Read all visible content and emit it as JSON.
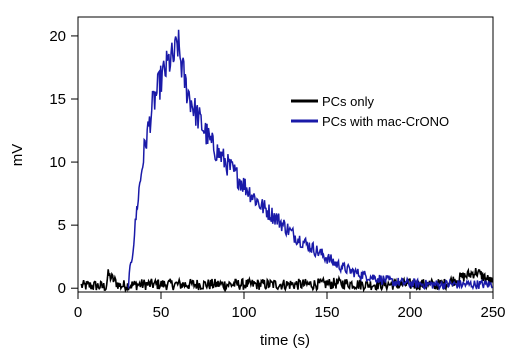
{
  "chart_data": {
    "type": "line",
    "xlabel": "time (s)",
    "ylabel": "mV",
    "xlim": [
      0,
      250
    ],
    "ylim": [
      -0.3,
      21.5
    ],
    "xticks": [
      0,
      50,
      100,
      150,
      200,
      250
    ],
    "yticks": [
      0,
      5,
      10,
      15,
      20
    ],
    "grid": false,
    "legend_position": "upper-right",
    "series": [
      {
        "name": "PCs only",
        "color": "#000000",
        "x": [
          2,
          10,
          17,
          18,
          25,
          40,
          60,
          80,
          100,
          120,
          140,
          160,
          170,
          180,
          200,
          220,
          240,
          250
        ],
        "y": [
          0.2,
          0.2,
          0.1,
          1.1,
          0.2,
          0.3,
          0.3,
          0.3,
          0.3,
          0.3,
          0.3,
          0.4,
          0.3,
          0.3,
          0.3,
          0.3,
          1.3,
          0.4
        ]
      },
      {
        "name": "PCs with mac-CrONO",
        "color": "#1a1aa8",
        "x": [
          30,
          33,
          36,
          40,
          45,
          50,
          55,
          58,
          60,
          62,
          65,
          70,
          80,
          90,
          100,
          110,
          120,
          130,
          140,
          150,
          160,
          170,
          180,
          190,
          200,
          210,
          220,
          230,
          240,
          250
        ],
        "y": [
          0,
          3,
          7,
          11,
          14.5,
          16.5,
          18,
          18.3,
          19.5,
          18,
          16,
          14.2,
          11.5,
          9.8,
          8.2,
          6.6,
          5.5,
          4.2,
          3.3,
          2.4,
          1.6,
          1.1,
          0.8,
          0.5,
          0.4,
          0.3,
          0.3,
          0.3,
          0.3,
          0.3
        ]
      }
    ]
  }
}
